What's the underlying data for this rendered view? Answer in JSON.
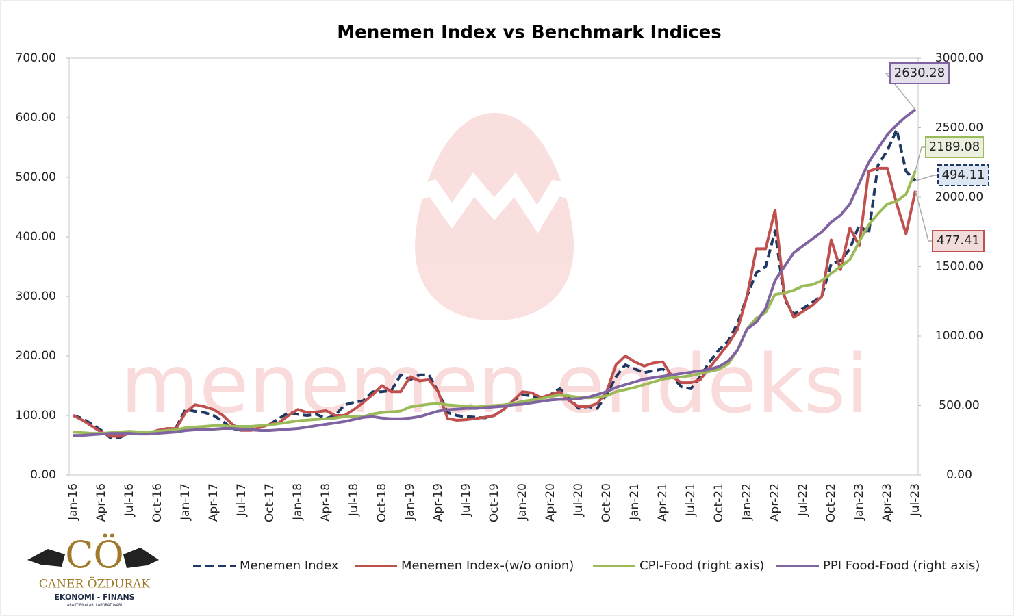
{
  "chart_data": {
    "type": "line",
    "title": "Menemen Index vs Benchmark Indices",
    "watermark": "menemen endeksi",
    "logo": {
      "initials": "CÖ",
      "name": "CANER ÖZDURAK",
      "tagline": "EKONOMİ - FİNANS",
      "subtag": "ARAŞTIRMALARI LABORATUVARI"
    },
    "grid": false,
    "legend": "bottom",
    "categories": [
      "Jan-16",
      null,
      null,
      "Apr-16",
      null,
      null,
      "Jul-16",
      null,
      null,
      "Oct-16",
      null,
      null,
      "Jan-17",
      null,
      null,
      "Apr-17",
      null,
      null,
      "Jul-17",
      null,
      null,
      "Oct-17",
      null,
      null,
      "Jan-18",
      null,
      null,
      "Apr-18",
      null,
      null,
      "Jul-18",
      null,
      null,
      "Oct-18",
      null,
      null,
      "Jan-19",
      null,
      null,
      "Apr-19",
      null,
      null,
      "Jul-19",
      null,
      null,
      "Oct-19",
      null,
      null,
      "Jan-20",
      null,
      null,
      "Apr-20",
      null,
      null,
      "Jul-20",
      null,
      null,
      "Oct-20",
      null,
      null,
      "Jan-21",
      null,
      null,
      "Apr-21",
      null,
      null,
      "Jul-21",
      null,
      null,
      "Oct-21",
      null,
      null,
      "Jan-22",
      null,
      null,
      "Apr-22",
      null,
      null,
      "Jul-22",
      null,
      null,
      "Oct-22",
      null,
      null,
      "Jan-23",
      null,
      null,
      "Apr-23",
      null,
      null,
      "Jul-23"
    ],
    "ylim": [
      0,
      700
    ],
    "yticks": [
      {
        "value": 0,
        "label": "0.00"
      },
      {
        "value": 100,
        "label": "100.00"
      },
      {
        "value": 200,
        "label": "200.00"
      },
      {
        "value": 300,
        "label": "300.00"
      },
      {
        "value": 400,
        "label": "400.00"
      },
      {
        "value": 500,
        "label": "500.00"
      },
      {
        "value": 600,
        "label": "600.00"
      },
      {
        "value": 700,
        "label": "700.00"
      }
    ],
    "y2lim": [
      0,
      3000
    ],
    "y2ticks": [
      {
        "value": 0,
        "label": "0.00"
      },
      {
        "value": 500,
        "label": "500.00"
      },
      {
        "value": 1000,
        "label": "1000.00"
      },
      {
        "value": 1500,
        "label": "1500.00"
      },
      {
        "value": 2000,
        "label": "2000.00"
      },
      {
        "value": 2500,
        "label": "2500.00"
      },
      {
        "value": 3000,
        "label": "3000.00"
      }
    ],
    "series": [
      {
        "name": "Menemen Index",
        "color": "#1f3864",
        "line_style": "dashed",
        "axis": "y",
        "values": [
          100,
          95,
          85,
          75,
          62,
          63,
          72,
          70,
          70,
          72,
          75,
          80,
          110,
          107,
          105,
          100,
          90,
          78,
          75,
          78,
          80,
          85,
          95,
          105,
          102,
          100,
          102,
          95,
          100,
          118,
          122,
          125,
          140,
          140,
          142,
          168,
          160,
          168,
          168,
          140,
          105,
          100,
          98,
          97,
          96,
          100,
          110,
          125,
          135,
          133,
          130,
          135,
          145,
          130,
          112,
          115,
          112,
          135,
          165,
          185,
          178,
          172,
          175,
          178,
          165,
          148,
          145,
          165,
          190,
          210,
          225,
          255,
          300,
          340,
          350,
          410,
          295,
          270,
          280,
          290,
          300,
          355,
          360,
          380,
          420,
          405,
          520,
          545,
          580,
          510,
          494.11
        ]
      },
      {
        "name": "Menemen Index-(w/o onion)",
        "color": "#c0504d",
        "line_style": "solid",
        "axis": "y",
        "values": [
          100,
          92,
          82,
          72,
          65,
          65,
          70,
          70,
          70,
          75,
          78,
          78,
          105,
          118,
          115,
          110,
          100,
          85,
          75,
          75,
          80,
          85,
          88,
          100,
          110,
          105,
          106,
          108,
          100,
          100,
          110,
          122,
          135,
          150,
          140,
          140,
          165,
          158,
          160,
          140,
          95,
          92,
          93,
          95,
          97,
          100,
          110,
          125,
          140,
          138,
          130,
          135,
          140,
          125,
          115,
          115,
          120,
          140,
          185,
          200,
          190,
          183,
          188,
          190,
          165,
          155,
          155,
          160,
          180,
          200,
          220,
          245,
          300,
          380,
          380,
          445,
          300,
          265,
          275,
          285,
          300,
          395,
          345,
          415,
          385,
          510,
          515,
          515,
          455,
          405,
          477.41
        ]
      },
      {
        "name": "CPI-Food (right axis)",
        "color": "#9bbb59",
        "line_style": "solid",
        "axis": "y2",
        "values": [
          310,
          305,
          300,
          300,
          305,
          310,
          315,
          310,
          310,
          315,
          320,
          325,
          340,
          345,
          350,
          355,
          355,
          350,
          350,
          350,
          355,
          360,
          370,
          380,
          390,
          395,
          400,
          405,
          410,
          420,
          420,
          420,
          440,
          450,
          455,
          460,
          490,
          500,
          510,
          515,
          505,
          500,
          495,
          490,
          495,
          500,
          505,
          515,
          530,
          540,
          550,
          565,
          575,
          570,
          560,
          555,
          560,
          570,
          600,
          615,
          630,
          650,
          670,
          690,
          700,
          705,
          715,
          730,
          745,
          760,
          800,
          900,
          1050,
          1130,
          1170,
          1300,
          1310,
          1330,
          1360,
          1370,
          1400,
          1450,
          1500,
          1550,
          1680,
          1800,
          1880,
          1950,
          1970,
          2020,
          2189.08
        ]
      },
      {
        "name": "PPI Food-Food (right axis)",
        "color": "#8064a2",
        "line_style": "solid",
        "axis": "y2",
        "values": [
          285,
          285,
          290,
          295,
          300,
          300,
          300,
          295,
          295,
          300,
          305,
          310,
          320,
          325,
          330,
          330,
          335,
          335,
          330,
          325,
          320,
          320,
          325,
          330,
          335,
          345,
          355,
          365,
          375,
          385,
          400,
          415,
          420,
          410,
          405,
          405,
          410,
          420,
          440,
          460,
          470,
          475,
          480,
          480,
          485,
          490,
          495,
          505,
          510,
          520,
          530,
          540,
          545,
          545,
          550,
          560,
          580,
          600,
          630,
          650,
          670,
          690,
          700,
          710,
          720,
          730,
          740,
          750,
          760,
          780,
          820,
          900,
          1050,
          1100,
          1200,
          1400,
          1500,
          1600,
          1650,
          1700,
          1750,
          1820,
          1870,
          1950,
          2100,
          2250,
          2350,
          2450,
          2520,
          2580,
          2630.28
        ]
      }
    ]
  }
}
